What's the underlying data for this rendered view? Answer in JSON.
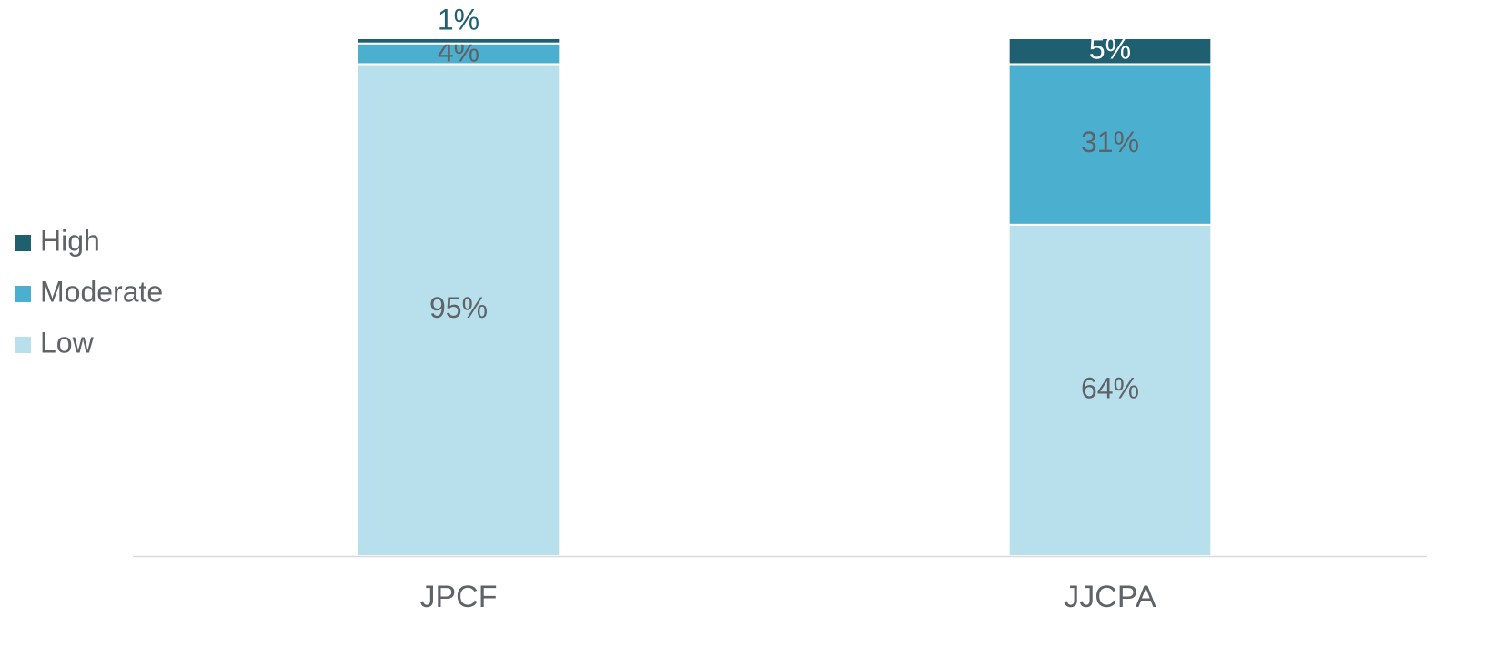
{
  "chart_data": {
    "type": "stacked_bar",
    "categories": [
      "JPCF",
      "JJCPA"
    ],
    "series": [
      {
        "name": "Low",
        "color": "#b8e0ec",
        "values": [
          95,
          64
        ],
        "value_labels": [
          "95%",
          "64%"
        ]
      },
      {
        "name": "Moderate",
        "color": "#4bafd0",
        "values": [
          4,
          31
        ],
        "value_labels": [
          "4%",
          "31%"
        ]
      },
      {
        "name": "High",
        "color": "#1f5f70",
        "values": [
          1,
          5
        ],
        "value_labels": [
          "1%",
          "5%"
        ]
      }
    ],
    "ylim": [
      0,
      100
    ],
    "legend": "left"
  }
}
